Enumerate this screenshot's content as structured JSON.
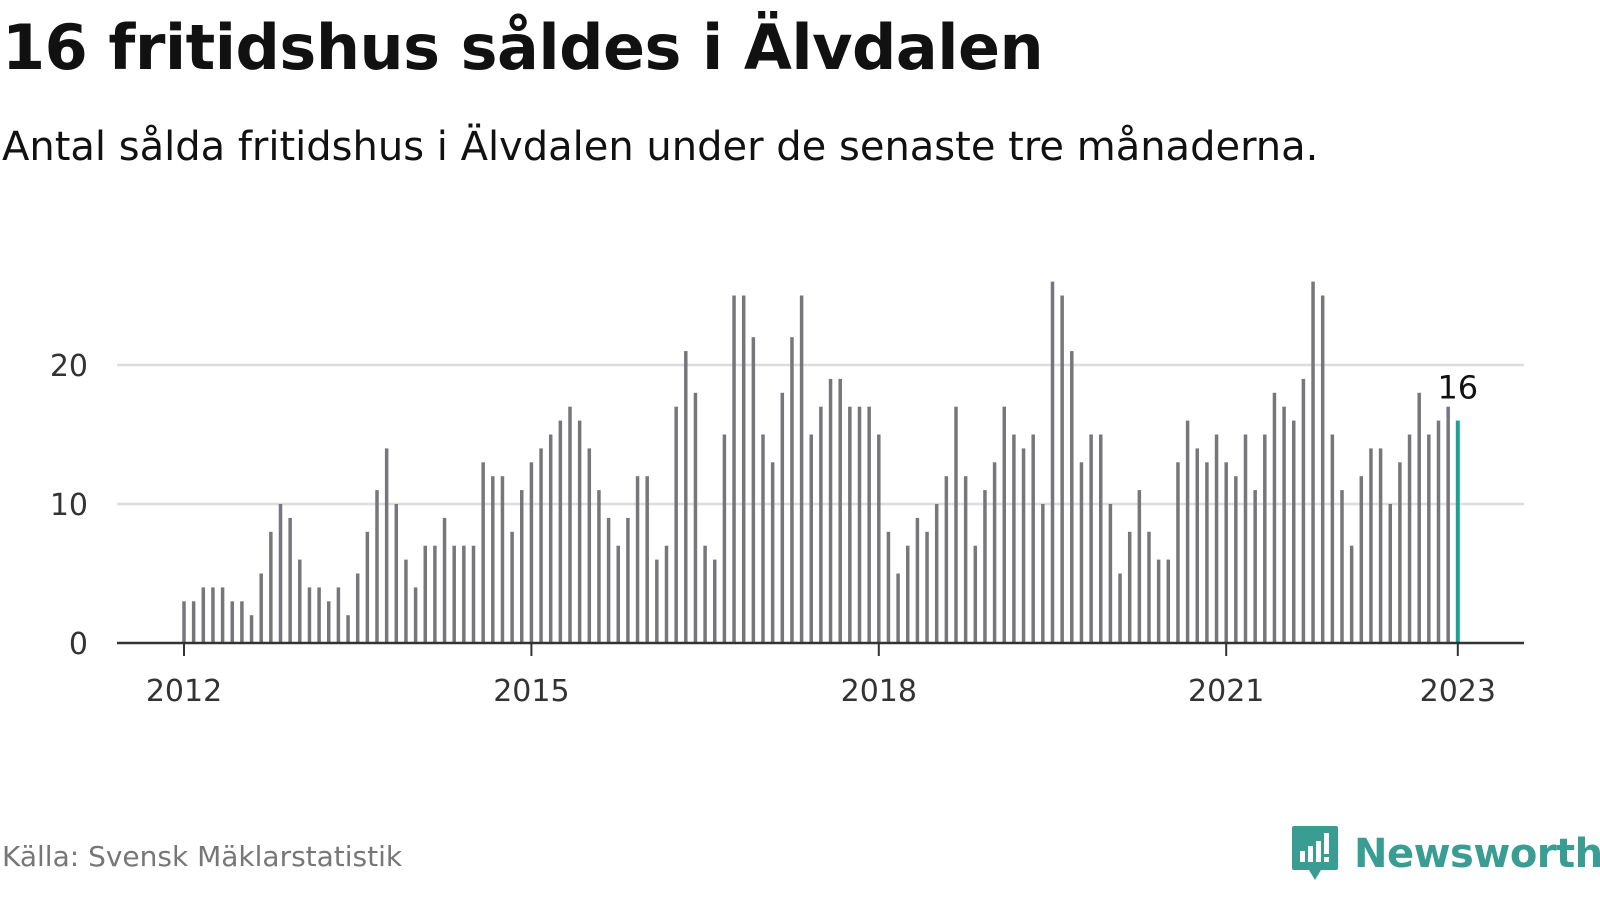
{
  "header": {
    "title": "16 fritidshus såldes i Älvdalen",
    "subtitle": "Antal sålda fritidshus i Älvdalen under de senaste tre månaderna."
  },
  "footer": {
    "source": "Källa: Svensk Mäklarstatistik",
    "brand": "Newsworthy"
  },
  "colors": {
    "bar": "#77777b",
    "highlight": "#1aa392",
    "grid": "#dddddd",
    "axis": "#333333",
    "brand": "#3a9d93"
  },
  "chart_data": {
    "type": "bar",
    "title": "16 fritidshus såldes i Älvdalen",
    "subtitle": "Antal sålda fritidshus i Älvdalen under de senaste tre månaderna.",
    "x_start": "2012-01",
    "x_step": "month",
    "values": [
      3,
      3,
      4,
      4,
      4,
      3,
      3,
      2,
      5,
      8,
      10,
      9,
      6,
      4,
      4,
      3,
      4,
      2,
      5,
      8,
      11,
      14,
      10,
      6,
      4,
      7,
      7,
      9,
      7,
      7,
      7,
      13,
      12,
      12,
      8,
      11,
      13,
      14,
      15,
      16,
      17,
      16,
      14,
      11,
      9,
      7,
      9,
      12,
      12,
      6,
      7,
      17,
      21,
      18,
      7,
      6,
      15,
      25,
      25,
      22,
      15,
      13,
      18,
      22,
      25,
      15,
      17,
      19,
      19,
      17,
      17,
      17,
      15,
      8,
      5,
      7,
      9,
      8,
      10,
      12,
      17,
      12,
      7,
      11,
      13,
      17,
      15,
      14,
      15,
      10,
      26,
      25,
      21,
      13,
      15,
      15,
      10,
      5,
      8,
      11,
      8,
      6,
      6,
      13,
      16,
      14,
      13,
      15,
      13,
      12,
      15,
      11,
      15,
      18,
      17,
      16,
      19,
      26,
      25,
      15,
      11,
      7,
      12,
      14,
      14,
      10,
      13,
      15,
      18,
      15,
      16,
      17,
      16
    ],
    "highlight_index": 132,
    "highlight_label": "16",
    "xticks": [
      {
        "label": "2012",
        "index": 0
      },
      {
        "label": "2015",
        "index": 36
      },
      {
        "label": "2018",
        "index": 72
      },
      {
        "label": "2021",
        "index": 108
      },
      {
        "label": "2023",
        "index": 132
      }
    ],
    "yticks": [
      0,
      10,
      20
    ],
    "ylim": [
      0,
      27
    ],
    "grid": true,
    "xlabel": "",
    "ylabel": ""
  }
}
